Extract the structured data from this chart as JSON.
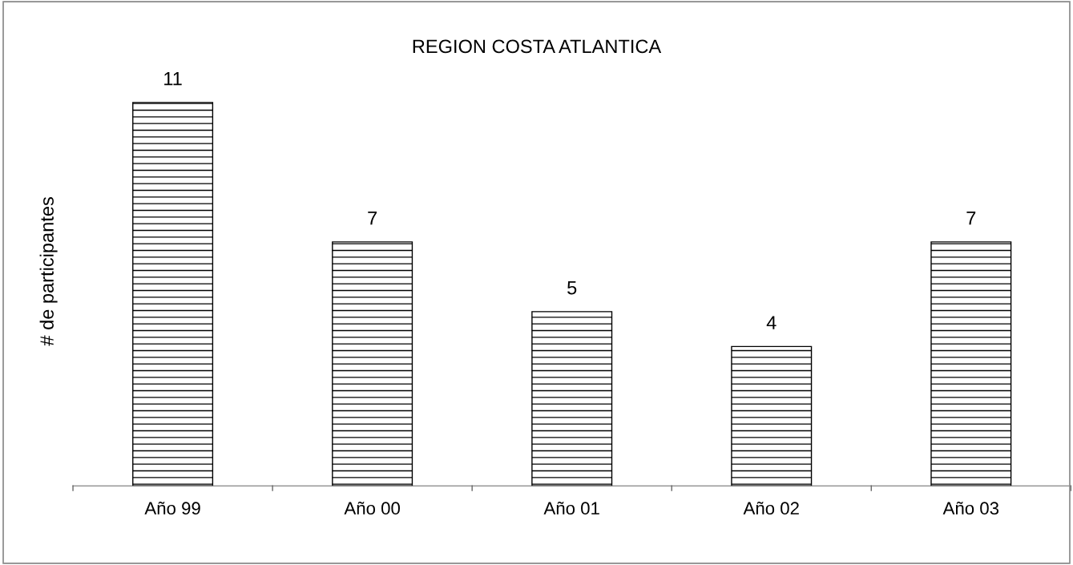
{
  "chart_data": {
    "type": "bar",
    "title": "REGION COSTA ATLANTICA",
    "ylabel": "# de participantes",
    "categories": [
      "Año 99",
      "Año 00",
      "Año 01",
      "Año 02",
      "Año 03"
    ],
    "values": [
      11,
      7,
      5,
      4,
      7
    ],
    "color": "#000000",
    "data_labels": true,
    "grid": false,
    "legend": false
  }
}
